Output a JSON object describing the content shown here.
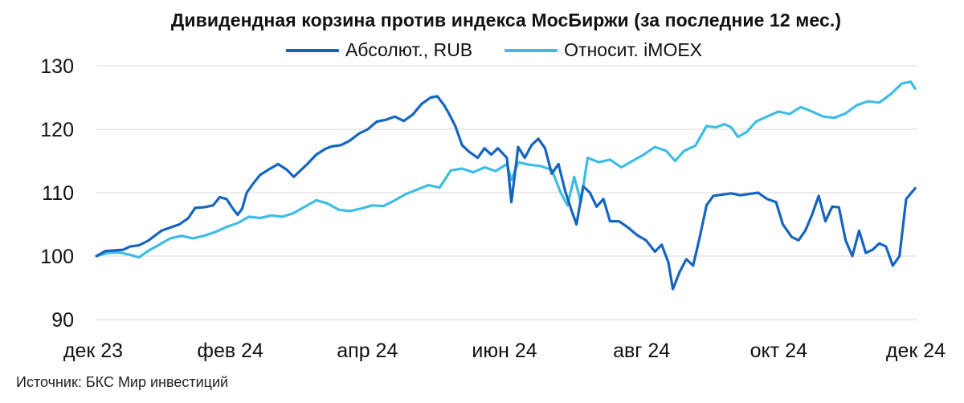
{
  "source": "Источник: БКС Мир инвестиций",
  "chart_data": {
    "type": "line",
    "title": "Дивидендная корзина против индекса МосБиржи (за последние 12 мес.)",
    "xlabel": "",
    "ylabel": "",
    "x_ticks": [
      "дек 23",
      "фев 24",
      "апр 24",
      "июн 24",
      "авг 24",
      "окт 24",
      "дек 24"
    ],
    "y_ticks": [
      90,
      100,
      110,
      120,
      130
    ],
    "ylim": [
      90,
      130
    ],
    "xlim": [
      "2023-12-01",
      "2024-12-01"
    ],
    "grid": "horizontal",
    "legend_position": "top-center",
    "series": [
      {
        "name": "Абсолют., RUB",
        "color": "#1565C0",
        "points": [
          [
            "2023-12-01",
            100.0
          ],
          [
            "2023-12-05",
            100.8
          ],
          [
            "2023-12-09",
            100.9
          ],
          [
            "2023-12-13",
            101.0
          ],
          [
            "2023-12-16",
            101.5
          ],
          [
            "2023-12-20",
            101.7
          ],
          [
            "2023-12-24",
            102.4
          ],
          [
            "2023-12-27",
            103.2
          ],
          [
            "2023-12-30",
            104.0
          ],
          [
            "2024-01-03",
            104.5
          ],
          [
            "2024-01-07",
            105.0
          ],
          [
            "2024-01-11",
            106.0
          ],
          [
            "2024-01-14",
            107.6
          ],
          [
            "2024-01-18",
            107.7
          ],
          [
            "2024-01-22",
            108.0
          ],
          [
            "2024-01-25",
            109.3
          ],
          [
            "2024-01-28",
            109.0
          ],
          [
            "2024-01-31",
            107.4
          ],
          [
            "2024-02-02",
            106.5
          ],
          [
            "2024-02-04",
            107.5
          ],
          [
            "2024-02-06",
            110.0
          ],
          [
            "2024-02-09",
            111.5
          ],
          [
            "2024-02-12",
            112.8
          ],
          [
            "2024-02-16",
            113.7
          ],
          [
            "2024-02-20",
            114.5
          ],
          [
            "2024-02-24",
            113.6
          ],
          [
            "2024-02-27",
            112.5
          ],
          [
            "2024-03-01",
            113.5
          ],
          [
            "2024-03-04",
            114.5
          ],
          [
            "2024-03-08",
            116.0
          ],
          [
            "2024-03-12",
            116.9
          ],
          [
            "2024-03-15",
            117.3
          ],
          [
            "2024-03-19",
            117.5
          ],
          [
            "2024-03-23",
            118.2
          ],
          [
            "2024-03-27",
            119.3
          ],
          [
            "2024-03-31",
            120.0
          ],
          [
            "2024-04-04",
            121.2
          ],
          [
            "2024-04-08",
            121.5
          ],
          [
            "2024-04-12",
            122.0
          ],
          [
            "2024-04-16",
            121.3
          ],
          [
            "2024-04-20",
            122.3
          ],
          [
            "2024-04-24",
            124.0
          ],
          [
            "2024-04-28",
            125.0
          ],
          [
            "2024-05-01",
            125.2
          ],
          [
            "2024-05-04",
            123.8
          ],
          [
            "2024-05-06",
            122.6
          ],
          [
            "2024-05-09",
            120.5
          ],
          [
            "2024-05-12",
            117.5
          ],
          [
            "2024-05-15",
            116.5
          ],
          [
            "2024-05-19",
            115.5
          ],
          [
            "2024-05-22",
            117.0
          ],
          [
            "2024-05-25",
            116.0
          ],
          [
            "2024-05-28",
            117.0
          ],
          [
            "2024-06-01",
            115.5
          ],
          [
            "2024-06-03",
            108.5
          ],
          [
            "2024-06-06",
            117.2
          ],
          [
            "2024-06-09",
            115.5
          ],
          [
            "2024-06-12",
            117.5
          ],
          [
            "2024-06-15",
            118.5
          ],
          [
            "2024-06-18",
            117.0
          ],
          [
            "2024-06-21",
            113.0
          ],
          [
            "2024-06-24",
            114.5
          ],
          [
            "2024-06-27",
            110.2
          ],
          [
            "2024-06-30",
            107.0
          ],
          [
            "2024-07-02",
            105.0
          ],
          [
            "2024-07-05",
            111.0
          ],
          [
            "2024-07-08",
            110.0
          ],
          [
            "2024-07-11",
            107.8
          ],
          [
            "2024-07-14",
            109.0
          ],
          [
            "2024-07-17",
            105.5
          ],
          [
            "2024-07-21",
            105.5
          ],
          [
            "2024-07-25",
            104.5
          ],
          [
            "2024-07-29",
            103.3
          ],
          [
            "2024-08-02",
            102.5
          ],
          [
            "2024-08-06",
            100.7
          ],
          [
            "2024-08-09",
            101.8
          ],
          [
            "2024-08-12",
            99.0
          ],
          [
            "2024-08-14",
            94.8
          ],
          [
            "2024-08-17",
            97.5
          ],
          [
            "2024-08-20",
            99.5
          ],
          [
            "2024-08-23",
            98.5
          ],
          [
            "2024-08-26",
            103.0
          ],
          [
            "2024-08-29",
            108.0
          ],
          [
            "2024-09-01",
            109.5
          ],
          [
            "2024-09-05",
            109.7
          ],
          [
            "2024-09-09",
            109.9
          ],
          [
            "2024-09-13",
            109.6
          ],
          [
            "2024-09-17",
            109.8
          ],
          [
            "2024-09-21",
            110.0
          ],
          [
            "2024-09-25",
            109.0
          ],
          [
            "2024-09-29",
            108.5
          ],
          [
            "2024-10-02",
            105.0
          ],
          [
            "2024-10-06",
            103.0
          ],
          [
            "2024-10-09",
            102.5
          ],
          [
            "2024-10-12",
            104.0
          ],
          [
            "2024-10-15",
            106.5
          ],
          [
            "2024-10-18",
            109.5
          ],
          [
            "2024-10-21",
            105.5
          ],
          [
            "2024-10-24",
            107.8
          ],
          [
            "2024-10-27",
            107.7
          ],
          [
            "2024-10-30",
            102.5
          ],
          [
            "2024-11-02",
            100.0
          ],
          [
            "2024-11-05",
            104.0
          ],
          [
            "2024-11-08",
            100.5
          ],
          [
            "2024-11-11",
            101.0
          ],
          [
            "2024-11-14",
            102.0
          ],
          [
            "2024-11-17",
            101.5
          ],
          [
            "2024-11-20",
            98.5
          ],
          [
            "2024-11-23",
            100.0
          ],
          [
            "2024-11-26",
            109.0
          ],
          [
            "2024-11-30",
            110.7
          ]
        ]
      },
      {
        "name": "Относит. iMOEX",
        "color": "#3DBDE6",
        "points": [
          [
            "2023-12-01",
            100.0
          ],
          [
            "2023-12-06",
            100.5
          ],
          [
            "2023-12-11",
            100.6
          ],
          [
            "2023-12-16",
            100.2
          ],
          [
            "2023-12-20",
            99.8
          ],
          [
            "2023-12-24",
            100.8
          ],
          [
            "2023-12-29",
            101.8
          ],
          [
            "2024-01-03",
            102.8
          ],
          [
            "2024-01-08",
            103.2
          ],
          [
            "2024-01-13",
            102.8
          ],
          [
            "2024-01-18",
            103.2
          ],
          [
            "2024-01-23",
            103.8
          ],
          [
            "2024-01-28",
            104.6
          ],
          [
            "2024-02-02",
            105.2
          ],
          [
            "2024-02-07",
            106.2
          ],
          [
            "2024-02-12",
            106.0
          ],
          [
            "2024-02-17",
            106.4
          ],
          [
            "2024-02-22",
            106.2
          ],
          [
            "2024-02-27",
            106.8
          ],
          [
            "2024-03-03",
            107.8
          ],
          [
            "2024-03-08",
            108.8
          ],
          [
            "2024-03-13",
            108.3
          ],
          [
            "2024-03-18",
            107.3
          ],
          [
            "2024-03-23",
            107.1
          ],
          [
            "2024-03-28",
            107.5
          ],
          [
            "2024-04-02",
            108.0
          ],
          [
            "2024-04-07",
            107.9
          ],
          [
            "2024-04-12",
            108.8
          ],
          [
            "2024-04-17",
            109.8
          ],
          [
            "2024-04-22",
            110.5
          ],
          [
            "2024-04-27",
            111.2
          ],
          [
            "2024-05-02",
            110.8
          ],
          [
            "2024-05-07",
            113.5
          ],
          [
            "2024-05-12",
            113.8
          ],
          [
            "2024-05-17",
            113.2
          ],
          [
            "2024-05-22",
            114.0
          ],
          [
            "2024-05-27",
            113.4
          ],
          [
            "2024-06-01",
            114.5
          ],
          [
            "2024-06-03",
            112.0
          ],
          [
            "2024-06-06",
            114.8
          ],
          [
            "2024-06-11",
            114.4
          ],
          [
            "2024-06-16",
            114.2
          ],
          [
            "2024-06-21",
            113.6
          ],
          [
            "2024-06-25",
            110.0
          ],
          [
            "2024-06-28",
            108.0
          ],
          [
            "2024-07-01",
            112.5
          ],
          [
            "2024-07-04",
            108.5
          ],
          [
            "2024-07-07",
            115.5
          ],
          [
            "2024-07-12",
            114.8
          ],
          [
            "2024-07-17",
            115.2
          ],
          [
            "2024-07-22",
            114.0
          ],
          [
            "2024-07-27",
            115.0
          ],
          [
            "2024-08-01",
            116.0
          ],
          [
            "2024-08-06",
            117.2
          ],
          [
            "2024-08-11",
            116.6
          ],
          [
            "2024-08-15",
            115.0
          ],
          [
            "2024-08-19",
            116.6
          ],
          [
            "2024-08-24",
            117.4
          ],
          [
            "2024-08-29",
            120.5
          ],
          [
            "2024-09-02",
            120.3
          ],
          [
            "2024-09-06",
            120.8
          ],
          [
            "2024-09-09",
            120.3
          ],
          [
            "2024-09-12",
            118.8
          ],
          [
            "2024-09-16",
            119.6
          ],
          [
            "2024-09-20",
            121.2
          ],
          [
            "2024-09-25",
            122.0
          ],
          [
            "2024-09-30",
            122.8
          ],
          [
            "2024-10-05",
            122.4
          ],
          [
            "2024-10-10",
            123.5
          ],
          [
            "2024-10-15",
            122.8
          ],
          [
            "2024-10-20",
            122.0
          ],
          [
            "2024-10-25",
            121.8
          ],
          [
            "2024-10-30",
            122.5
          ],
          [
            "2024-11-04",
            123.8
          ],
          [
            "2024-11-09",
            124.4
          ],
          [
            "2024-11-14",
            124.2
          ],
          [
            "2024-11-19",
            125.5
          ],
          [
            "2024-11-24",
            127.2
          ],
          [
            "2024-11-28",
            127.5
          ],
          [
            "2024-11-30",
            126.4
          ]
        ]
      }
    ]
  }
}
